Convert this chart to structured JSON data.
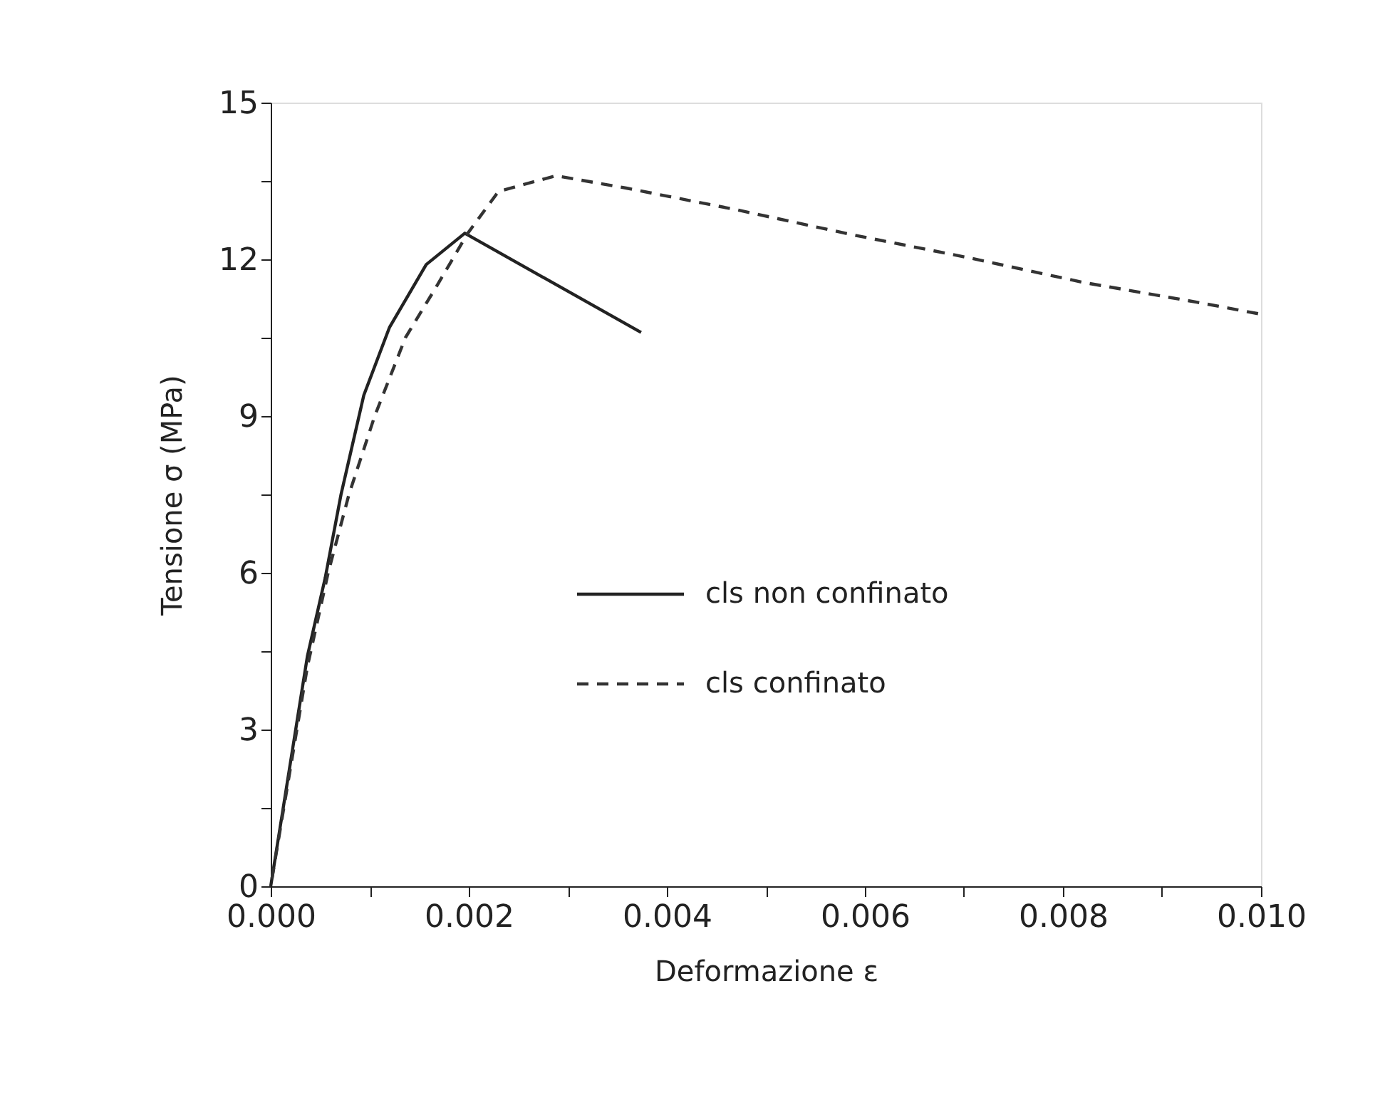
{
  "chart_data": {
    "type": "line",
    "xlabel": "Deformazione ε",
    "ylabel": "Tensione σ (MPa)",
    "xlim": [
      0,
      0.01
    ],
    "ylim": [
      0,
      15
    ],
    "xticks": [
      {
        "value": 0,
        "label": "0.000"
      },
      {
        "value": 0.001,
        "label": null
      },
      {
        "value": 0.002,
        "label": "0.002"
      },
      {
        "value": 0.003,
        "label": null
      },
      {
        "value": 0.004,
        "label": "0.004"
      },
      {
        "value": 0.005,
        "label": null
      },
      {
        "value": 0.006,
        "label": "0.006"
      },
      {
        "value": 0.007,
        "label": null
      },
      {
        "value": 0.008,
        "label": "0.008"
      },
      {
        "value": 0.009,
        "label": null
      },
      {
        "value": 0.01,
        "label": "0.010"
      }
    ],
    "yticks": [
      0,
      {
        "value": 1.5,
        "label": null
      },
      3,
      {
        "value": 4.5,
        "label": null
      },
      6,
      {
        "value": 7.5,
        "label": null
      },
      9,
      {
        "value": 10.5,
        "label": null
      },
      12,
      {
        "value": 13.5,
        "label": null
      },
      15
    ],
    "grid": false,
    "legend": "center",
    "marker": "none",
    "series": [
      {
        "name": "cls non confinato",
        "color": "#222222",
        "line_style": "solid",
        "x": [
          0,
          0.00037,
          0.00055,
          0.00071,
          0.00094,
          0.0012,
          0.00157,
          0.00196,
          0.00374
        ],
        "values": [
          0,
          4.4,
          5.9,
          7.5,
          9.4,
          10.7,
          11.9,
          12.5,
          10.6
        ]
      },
      {
        "name": "cls confinato",
        "color": "#333333",
        "line_style": "dashed",
        "x": [
          0,
          0.00037,
          0.00058,
          0.00079,
          0.00105,
          0.00136,
          0.00168,
          0.00199,
          0.0023,
          0.00288,
          0.0036,
          0.0047,
          0.0059,
          0.00705,
          0.0082,
          0.00935,
          0.00997
        ],
        "values": [
          0,
          4.2,
          6.0,
          7.5,
          9.0,
          10.5,
          11.5,
          12.5,
          13.3,
          13.6,
          13.36,
          12.95,
          12.46,
          12.03,
          11.56,
          11.18,
          10.96
        ]
      }
    ]
  }
}
